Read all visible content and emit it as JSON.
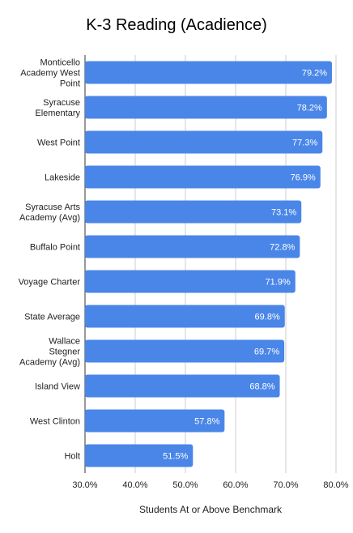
{
  "chart_data": {
    "type": "bar",
    "orientation": "horizontal",
    "title": "K-3 Reading (Acadience)",
    "xlabel": "Students At or Above Benchmark",
    "ylabel": "",
    "xlim": [
      30,
      80
    ],
    "ticks": [
      30,
      40,
      50,
      60,
      70,
      80
    ],
    "tick_labels": [
      "30.0%",
      "40.0%",
      "50.0%",
      "60.0%",
      "70.0%",
      "80.0%"
    ],
    "grid": true,
    "bar_color": "#4a86e8",
    "categories": [
      [
        "Monticello",
        "Academy West",
        "Point"
      ],
      [
        "Syracuse",
        "Elementary"
      ],
      [
        "West Point"
      ],
      [
        "Lakeside"
      ],
      [
        "Syracuse Arts",
        "Academy (Avg)"
      ],
      [
        "Buffalo Point"
      ],
      [
        "Voyage Charter"
      ],
      [
        "State Average"
      ],
      [
        "Wallace",
        "Stegner",
        "Academy (Avg)"
      ],
      [
        "Island View"
      ],
      [
        "West Clinton"
      ],
      [
        "Holt"
      ]
    ],
    "values": [
      79.2,
      78.2,
      77.3,
      76.9,
      73.1,
      72.8,
      71.9,
      69.8,
      69.7,
      68.8,
      57.8,
      51.5
    ],
    "value_labels": [
      "79.2%",
      "78.2%",
      "77.3%",
      "76.9%",
      "73.1%",
      "72.8%",
      "71.9%",
      "69.8%",
      "69.7%",
      "68.8%",
      "57.8%",
      "51.5%"
    ]
  }
}
